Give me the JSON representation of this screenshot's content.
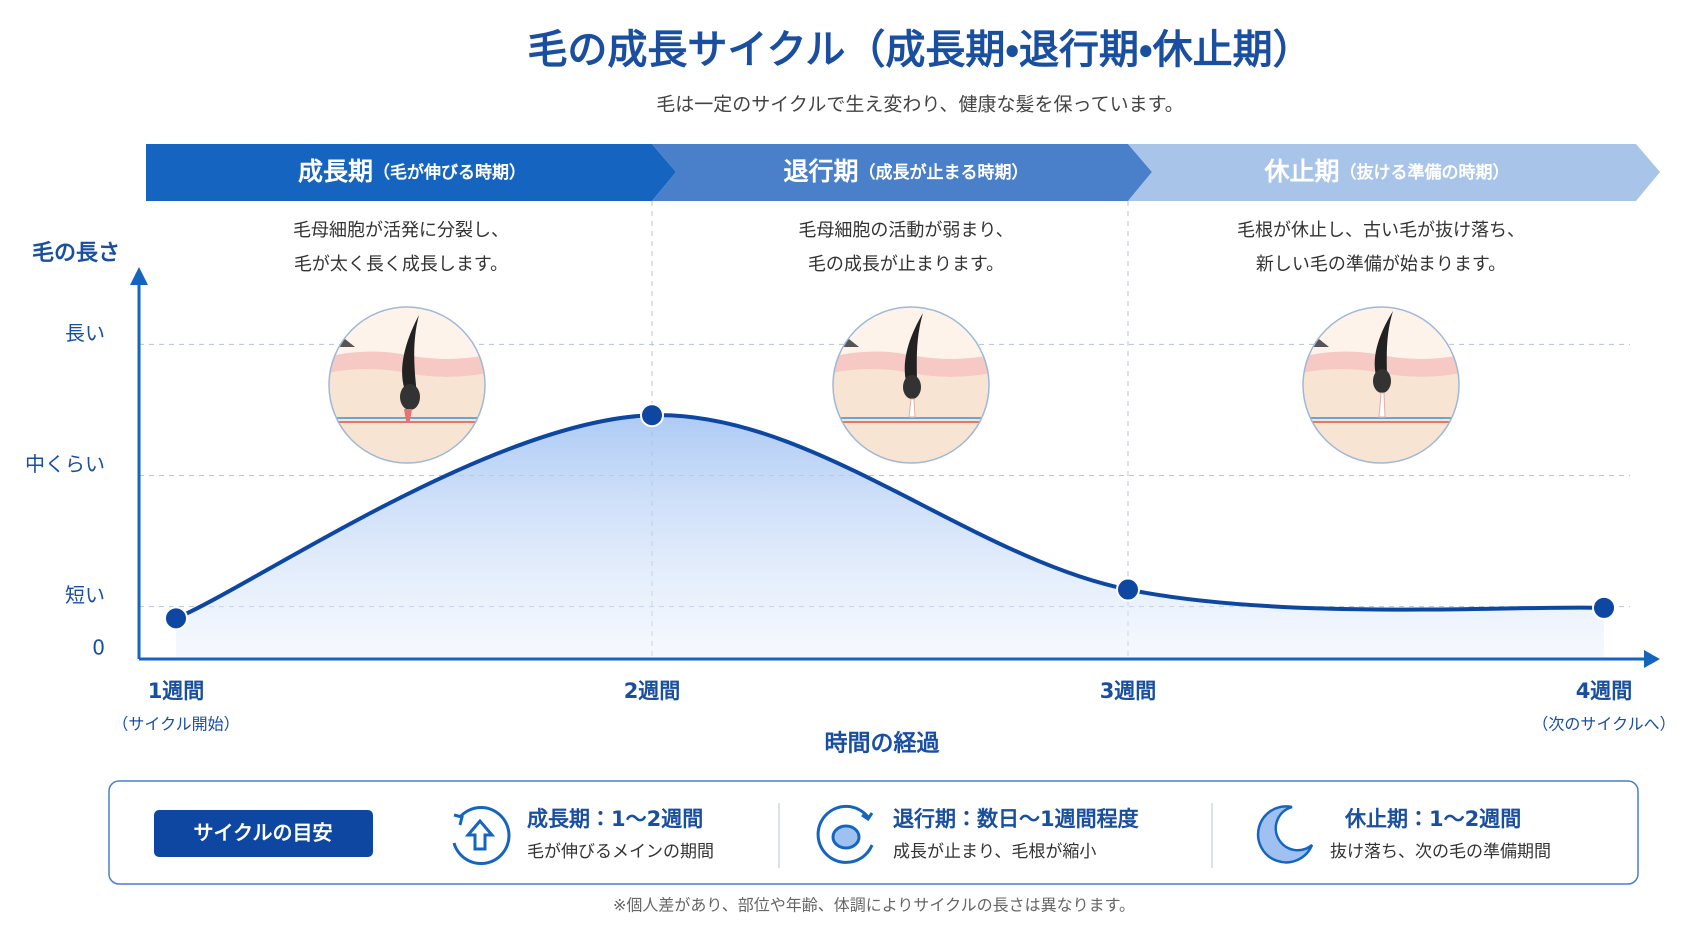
{
  "header": {
    "title": "毛の成長サイクル（成長期・退行期・休止期）",
    "subtitle": "毛は一定のサイクルで生え変わり、健康な髪を保っています。"
  },
  "phases": [
    {
      "name": "成長期",
      "note": "（毛が伸びる時期）",
      "description": [
        "毛母細胞が活発に分裂し、",
        "毛が太く長く成長します。"
      ]
    },
    {
      "name": "退行期",
      "note": "（成長が止まる時期）",
      "description": [
        "毛母細胞の活動が弱まり、",
        "毛の成長が止まります。"
      ]
    },
    {
      "name": "休止期",
      "note": "（抜ける準備の時期）",
      "description": [
        "毛根が休止し、古い毛が抜け落ち、",
        "新しい毛の準備が始まります。"
      ]
    }
  ],
  "chart_data": {
    "type": "line",
    "y_label": "毛の長さ",
    "x_label": "時間の経過",
    "categories": [
      "1週間",
      "2週間",
      "3週間",
      "4週間"
    ],
    "category_notes": [
      "（サイクル開始）",
      null,
      null,
      "（次のサイクルへ）"
    ],
    "values": [
      0.31,
      1.86,
      0.53,
      0.39
    ],
    "color": "#0d47a1",
    "ylim": [
      0,
      2.96
    ],
    "yticks": [
      0,
      {
        "value": 0.4,
        "label": "短い"
      },
      {
        "value": 1.4,
        "label": "中くらい"
      },
      {
        "value": 2.4,
        "label": "長い"
      }
    ],
    "grid": true
  },
  "legend": {
    "badge": "サイクルの目安",
    "items": [
      {
        "title": "成長期：1〜2週間",
        "text": "毛が伸びるメインの期間"
      },
      {
        "title": "退行期：数日〜1週間程度",
        "text": "成長が止まり、毛根が縮小"
      },
      {
        "title": "休止期：1〜2週間",
        "text": "抜け落ち、次の毛の準備期間"
      }
    ]
  },
  "footnote": "※個人差があり、部位や年齢、体調によりサイクルの長さは異なります。"
}
